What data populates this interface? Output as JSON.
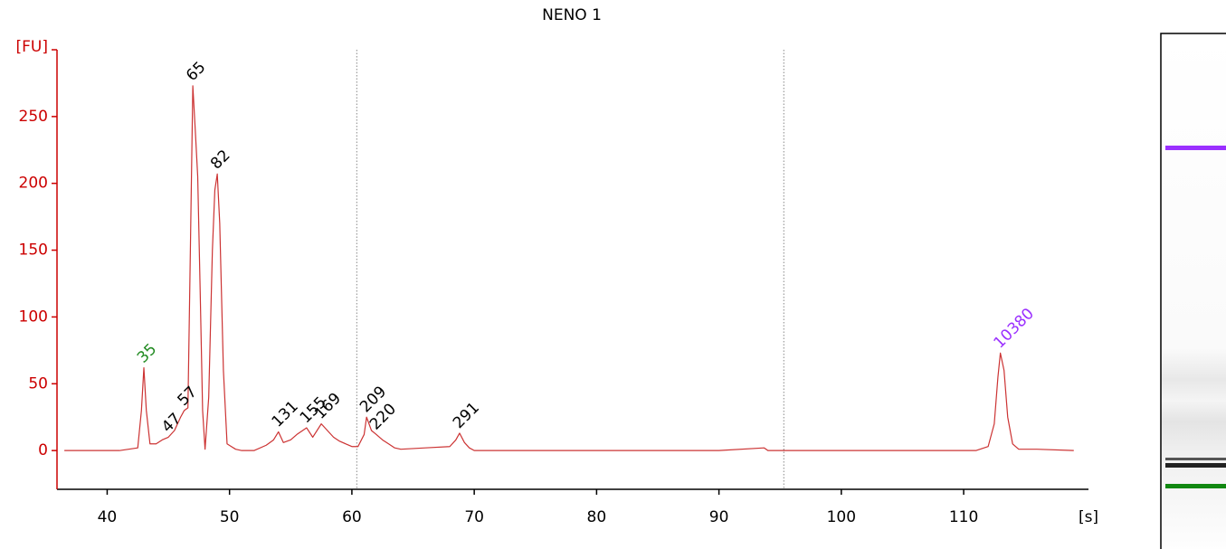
{
  "chart_data": {
    "type": "line",
    "title": "NENO 1",
    "y_label": "[FU]",
    "x_label": "[s]",
    "x": [
      36.5,
      41,
      42.5,
      42.8,
      43.0,
      43.2,
      43.5,
      44,
      44.5,
      45,
      45.5,
      46,
      46.3,
      46.6,
      46.8,
      47.0,
      47.2,
      47.4,
      47.6,
      47.8,
      48.0,
      48.3,
      48.6,
      48.8,
      49.0,
      49.2,
      49.5,
      49.8,
      50.5,
      51,
      52,
      53,
      53.6,
      54.0,
      54.4,
      55,
      55.5,
      56.3,
      56.8,
      57.5,
      58,
      58.5,
      59,
      59.5,
      60,
      60.5,
      61,
      61.2,
      61.6,
      62,
      62.5,
      63,
      63.5,
      64,
      66,
      68,
      68.5,
      68.8,
      69.2,
      69.6,
      70,
      75,
      80,
      85,
      90,
      93.7,
      94,
      96,
      100,
      105,
      110,
      111,
      112,
      112.5,
      112.8,
      113.0,
      113.3,
      113.6,
      114,
      114.5,
      116,
      119
    ],
    "series": [
      {
        "color": "#cc3333",
        "values": [
          0,
          0,
          2,
          30,
          62,
          30,
          5,
          5,
          8,
          10,
          15,
          25,
          30,
          32,
          150,
          273,
          240,
          205,
          120,
          30,
          1,
          40,
          150,
          195,
          207,
          170,
          60,
          5,
          1,
          0,
          0,
          4,
          8,
          14,
          6,
          8,
          12,
          17,
          10,
          20,
          15,
          10,
          7,
          5,
          3,
          3,
          12,
          25,
          15,
          12,
          8,
          5,
          2,
          1,
          2,
          3,
          8,
          13,
          6,
          2,
          0,
          0,
          0,
          0,
          0,
          2,
          0,
          0,
          0,
          0,
          0,
          0,
          3,
          20,
          55,
          73,
          60,
          25,
          5,
          1,
          1,
          0
        ]
      }
    ],
    "xlim": [
      35.9,
      120.2
    ],
    "ylim": [
      -29,
      300
    ],
    "xticks": [
      40,
      50,
      60,
      70,
      80,
      90,
      100,
      110
    ],
    "yticks": [
      0,
      50,
      100,
      150,
      200,
      250
    ],
    "vlines": [
      60.4,
      95.3
    ],
    "annotations": [
      {
        "text": "35",
        "x": 43.0,
        "y": 62,
        "color": "#228b22"
      },
      {
        "text": "47",
        "x": 45.0,
        "y": 10,
        "color": "#000000"
      },
      {
        "text": "57",
        "x": 46.3,
        "y": 30,
        "color": "#000000"
      },
      {
        "text": "65",
        "x": 47.0,
        "y": 273,
        "color": "#000000"
      },
      {
        "text": "82",
        "x": 49.0,
        "y": 207,
        "color": "#000000"
      },
      {
        "text": "131",
        "x": 54.0,
        "y": 14,
        "color": "#000000"
      },
      {
        "text": "155",
        "x": 56.3,
        "y": 17,
        "color": "#000000"
      },
      {
        "text": "169",
        "x": 57.5,
        "y": 20,
        "color": "#000000"
      },
      {
        "text": "209",
        "x": 61.2,
        "y": 25,
        "color": "#000000"
      },
      {
        "text": "220",
        "x": 62.0,
        "y": 12,
        "color": "#000000"
      },
      {
        "text": "291",
        "x": 68.8,
        "y": 13,
        "color": "#000000"
      },
      {
        "text": "10380",
        "x": 113.0,
        "y": 73,
        "color": "#9b30ff"
      }
    ]
  }
}
